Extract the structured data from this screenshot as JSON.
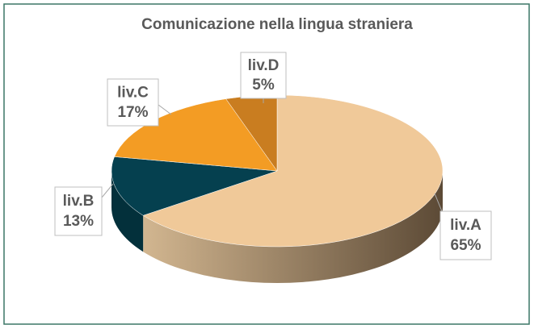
{
  "chart_data": {
    "type": "pie3d",
    "title": "Comunicazione nella lingua straniera",
    "categories": [
      "liv.A",
      "liv.B",
      "liv.C",
      "liv.D"
    ],
    "values": [
      65,
      13,
      17,
      5
    ],
    "value_labels": [
      "65%",
      "13%",
      "17%",
      "5%"
    ],
    "colors": [
      "#f0c999",
      "#05404f",
      "#f39c24",
      "#c97d20"
    ]
  }
}
